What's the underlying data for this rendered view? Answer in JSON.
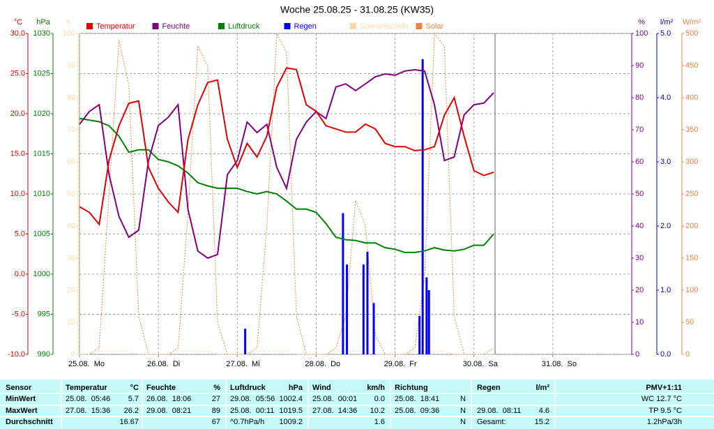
{
  "chart_data": {
    "type": "line",
    "title": "Woche 25.08.25 - 31.08.25 (KW35)",
    "xlim": [
      0,
      7
    ],
    "xticks": [
      {
        "value": 0,
        "label": "25.08.  Mo"
      },
      {
        "value": 1,
        "label": "26.08.  Di"
      },
      {
        "value": 2,
        "label": "27.08.  Mi"
      },
      {
        "value": 3,
        "label": "28.08.  Do"
      },
      {
        "value": 4,
        "label": "29.08.  Fr"
      },
      {
        "value": 5,
        "label": "30.08.  Sa"
      },
      {
        "value": 6,
        "label": "31.08.  So"
      }
    ],
    "grid": true,
    "axes": [
      {
        "unit": "°C",
        "side": "left",
        "color": "#e00000",
        "lim": [
          -10,
          30
        ],
        "ticks": [
          {
            "value": -10,
            "label": "-10.0"
          },
          {
            "value": -5,
            "label": "-5.0"
          },
          {
            "value": 0,
            "label": "0.0"
          },
          {
            "value": 5,
            "label": "5.0"
          },
          {
            "value": 10,
            "label": "10.0"
          },
          {
            "value": 15,
            "label": "15.0"
          },
          {
            "value": 20,
            "label": "20.0"
          },
          {
            "value": 25,
            "label": "25.0"
          },
          {
            "value": 30,
            "label": "30.0"
          }
        ]
      },
      {
        "unit": "hPa",
        "side": "left",
        "color": "#008000",
        "lim": [
          990,
          1030
        ],
        "ticks": [
          990,
          995,
          1000,
          1005,
          1010,
          1015,
          1020,
          1025,
          1030
        ]
      },
      {
        "unit": "h",
        "side": "left",
        "color": "#ffd8a8",
        "lim": [
          0,
          100
        ],
        "ticks": [
          0,
          10,
          20,
          30,
          40,
          50,
          60,
          70,
          80,
          90,
          100
        ]
      },
      {
        "unit": "%",
        "side": "right",
        "color": "#800080",
        "lim": [
          0,
          100
        ],
        "ticks": [
          0,
          10,
          20,
          30,
          40,
          50,
          60,
          70,
          80,
          90,
          100
        ]
      },
      {
        "unit": "l/m²",
        "side": "right",
        "color": "#0000c0",
        "lim": [
          0,
          5
        ],
        "ticks": [
          {
            "value": 0,
            "label": "0.0"
          },
          {
            "value": 1,
            "label": "1.0"
          },
          {
            "value": 2,
            "label": "2.0"
          },
          {
            "value": 3,
            "label": "3.0"
          },
          {
            "value": 4,
            "label": "4.0"
          },
          {
            "value": 5,
            "label": "5.0"
          }
        ]
      },
      {
        "unit": "W/m²",
        "side": "right",
        "color": "#f08040",
        "lim": [
          0,
          500
        ],
        "ticks": [
          0,
          50,
          100,
          150,
          200,
          250,
          300,
          350,
          400,
          450,
          500
        ]
      }
    ],
    "x": [
      0,
      0.125,
      0.25,
      0.375,
      0.5,
      0.625,
      0.75,
      0.875,
      1,
      1.125,
      1.25,
      1.375,
      1.5,
      1.625,
      1.75,
      1.875,
      2,
      2.125,
      2.25,
      2.375,
      2.5,
      2.625,
      2.75,
      2.875,
      3,
      3.125,
      3.25,
      3.375,
      3.5,
      3.625,
      3.75,
      3.875,
      4,
      4.125,
      4.25,
      4.375,
      4.5,
      4.625,
      4.75,
      4.875,
      5,
      5.125,
      5.25
    ],
    "series": [
      {
        "name": "Temperatur",
        "color": "#e00000",
        "axis": "°C",
        "style": "line",
        "values": [
          8.4,
          7.7,
          6.2,
          14.2,
          18.5,
          21.3,
          21.6,
          13.3,
          10.7,
          9.0,
          7.7,
          16.8,
          21.1,
          23.9,
          24.2,
          16.8,
          13.3,
          16.3,
          14.6,
          17.2,
          23.3,
          25.7,
          25.5,
          21.1,
          20.3,
          18.5,
          18.1,
          17.7,
          17.7,
          18.7,
          18.1,
          16.3,
          15.9,
          15.9,
          15.4,
          15.5,
          15.9,
          19.8,
          22.0,
          17.2,
          12.9,
          12.3,
          12.7
        ]
      },
      {
        "name": "Feuchte",
        "color": "#800080",
        "axis": "%",
        "style": "line",
        "values": [
          71.7,
          75.7,
          77.8,
          56,
          43,
          36.5,
          38.7,
          60.4,
          71.3,
          73.9,
          77.8,
          45.2,
          32.2,
          30,
          31.1,
          56,
          60.4,
          72.4,
          69.1,
          71.7,
          58.3,
          51.7,
          67,
          72.4,
          75.7,
          73.5,
          83.3,
          84.3,
          82.2,
          84.3,
          86.5,
          87.4,
          87,
          88.3,
          88.7,
          88.3,
          77.8,
          60.4,
          61.5,
          74.6,
          77.8,
          78.3,
          81.5
        ]
      },
      {
        "name": "Luftdruck",
        "color": "#008000",
        "axis": "hPa",
        "style": "line",
        "values": [
          1019.4,
          1019.2,
          1019.0,
          1018.5,
          1017.2,
          1015.2,
          1015.5,
          1015.5,
          1014.3,
          1014.0,
          1013.5,
          1012.6,
          1011.4,
          1011.0,
          1010.7,
          1010.7,
          1010.7,
          1010.3,
          1010.0,
          1010.3,
          1010.0,
          1009.1,
          1008.1,
          1008.1,
          1007.7,
          1006.3,
          1004.6,
          1004.3,
          1004.2,
          1003.9,
          1003.9,
          1003.3,
          1003.1,
          1002.7,
          1002.7,
          1002.9,
          1003.3,
          1003.0,
          1002.9,
          1003.1,
          1003.6,
          1003.6,
          1005.0
        ]
      },
      {
        "name": "Regen",
        "color": "#0000ff",
        "axis": "l/m²",
        "style": "bar",
        "x": [
          2.1,
          3.34,
          3.39,
          3.6,
          3.65,
          3.73,
          4.31,
          4.35,
          4.4,
          4.43
        ],
        "values": [
          0.4,
          2.2,
          1.4,
          1.4,
          1.6,
          0.8,
          0.6,
          4.6,
          1.2,
          1.0
        ]
      },
      {
        "name": "Sonnenschein",
        "color": "#ffd8a8",
        "axis": "h",
        "style": "dotted",
        "values": [
          0,
          0,
          1,
          1,
          1,
          1,
          0,
          0,
          0,
          0,
          1,
          1,
          1,
          1,
          0,
          0,
          0,
          0,
          1,
          1,
          1,
          1,
          0,
          0,
          0,
          0,
          1,
          1,
          1,
          1,
          0,
          0,
          0,
          0,
          1,
          1,
          1,
          1,
          0,
          0,
          0,
          0,
          0
        ]
      },
      {
        "name": "Solar",
        "color": "#f08040",
        "axis": "W/m²",
        "style": "dotted",
        "values": [
          0,
          0,
          10,
          250,
          490,
          420,
          60,
          0,
          0,
          0,
          10,
          220,
          480,
          450,
          50,
          0,
          0,
          0,
          10,
          200,
          500,
          470,
          60,
          0,
          0,
          0,
          10,
          60,
          240,
          200,
          30,
          0,
          0,
          0,
          10,
          120,
          500,
          480,
          60,
          0,
          0,
          0,
          10
        ]
      }
    ]
  },
  "table": {
    "header": {
      "label": "Sensor",
      "temp_time": "Temperatur",
      "temp": "°C",
      "hum_time": "Feuchte",
      "hum": "%",
      "press_time": "Luftdruck",
      "press": "hPa",
      "wind_time": "Wind",
      "wind": "km/h",
      "dir_time": "Richtung",
      "rain_time": "Regen",
      "rain": "l/m²",
      "pmv": "PMV+1:11"
    },
    "rows": [
      {
        "label": "MinWert",
        "temp_time": "25.08.  05:46",
        "temp": "5.7",
        "hum_time": "26.08.  18:06",
        "hum": "27",
        "press_time": "29.08.  05:56",
        "press": "1002.4",
        "wind_time": "25.08.  00:01",
        "wind": "0.0",
        "dir_time": "25.08.  18:41",
        "dir": "N",
        "pmv": "WC 12.7 °C"
      },
      {
        "label": "MaxWert",
        "temp_time": "27.08.  15:36",
        "temp": "26.2",
        "hum_time": "29.08.  08:21",
        "hum": "89",
        "press_time": "25.08.  00:11",
        "press": "1019.5",
        "wind_time": "27.08.  14:36",
        "wind": "10.2",
        "dir_time": "25.08.  09:36",
        "dir": "N",
        "rain_time": "29.08.  08:11",
        "rain": "4.6",
        "pmv": "TP 9.5 °C"
      },
      {
        "label": "Durchschnitt",
        "temp": "16.67",
        "hum": "67",
        "press_time": "^0.7hPa/h",
        "press": "1009.2",
        "wind": "1.6",
        "dir": "N",
        "rain_time": "Gesamt:",
        "rain": "15.2",
        "pmv": "1.2hPa/3h"
      }
    ]
  }
}
